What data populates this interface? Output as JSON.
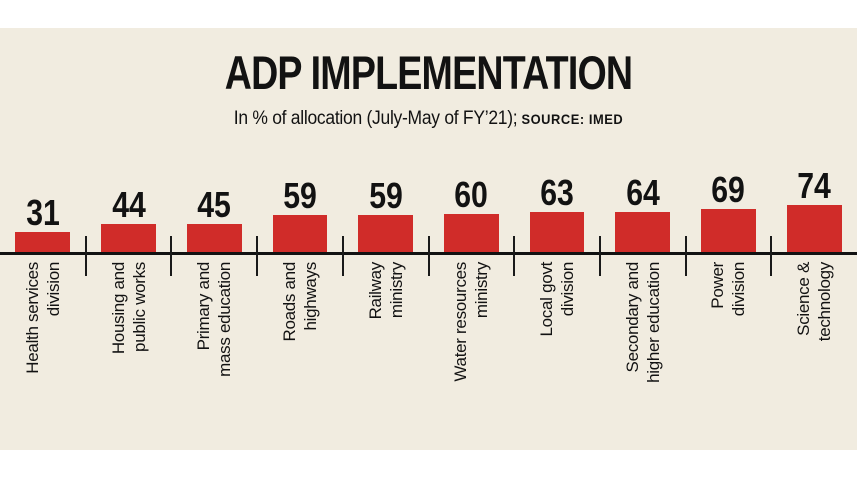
{
  "colors": {
    "page_background": "#ffffff",
    "panel_background": "#f1ece0",
    "bar_color": "#d02c29",
    "text_color": "#121212",
    "baseline_color": "#121212"
  },
  "header": {
    "title": "ADP IMPLEMENTATION",
    "subtitle": "In % of allocation (July-May of FY’21);",
    "source_label": "SOURCE: IMED"
  },
  "chart_data": {
    "type": "bar",
    "title": "ADP IMPLEMENTATION",
    "subtitle": "In % of allocation (July-May of FY’21)",
    "source": "IMED",
    "unit": "%",
    "categories": [
      [
        "Health services",
        "division"
      ],
      [
        "Housing and",
        "public works"
      ],
      [
        "Primary and",
        "mass education"
      ],
      [
        "Roads and",
        "highways"
      ],
      [
        "Railway",
        "ministry"
      ],
      [
        "Water resources",
        "ministry"
      ],
      [
        "Local govt",
        "division"
      ],
      [
        "Secondary and",
        "higher education"
      ],
      [
        "Power",
        "division"
      ],
      [
        "Science &",
        "technology"
      ]
    ],
    "values": [
      31,
      44,
      45,
      59,
      59,
      60,
      63,
      64,
      69,
      74
    ],
    "value_labels_position": "above-bars",
    "category_labels_rotation": -90,
    "bar_color": "#d02c29",
    "ylim": [
      0,
      80
    ],
    "grid": false,
    "axes_visible": false,
    "legend": "none"
  }
}
